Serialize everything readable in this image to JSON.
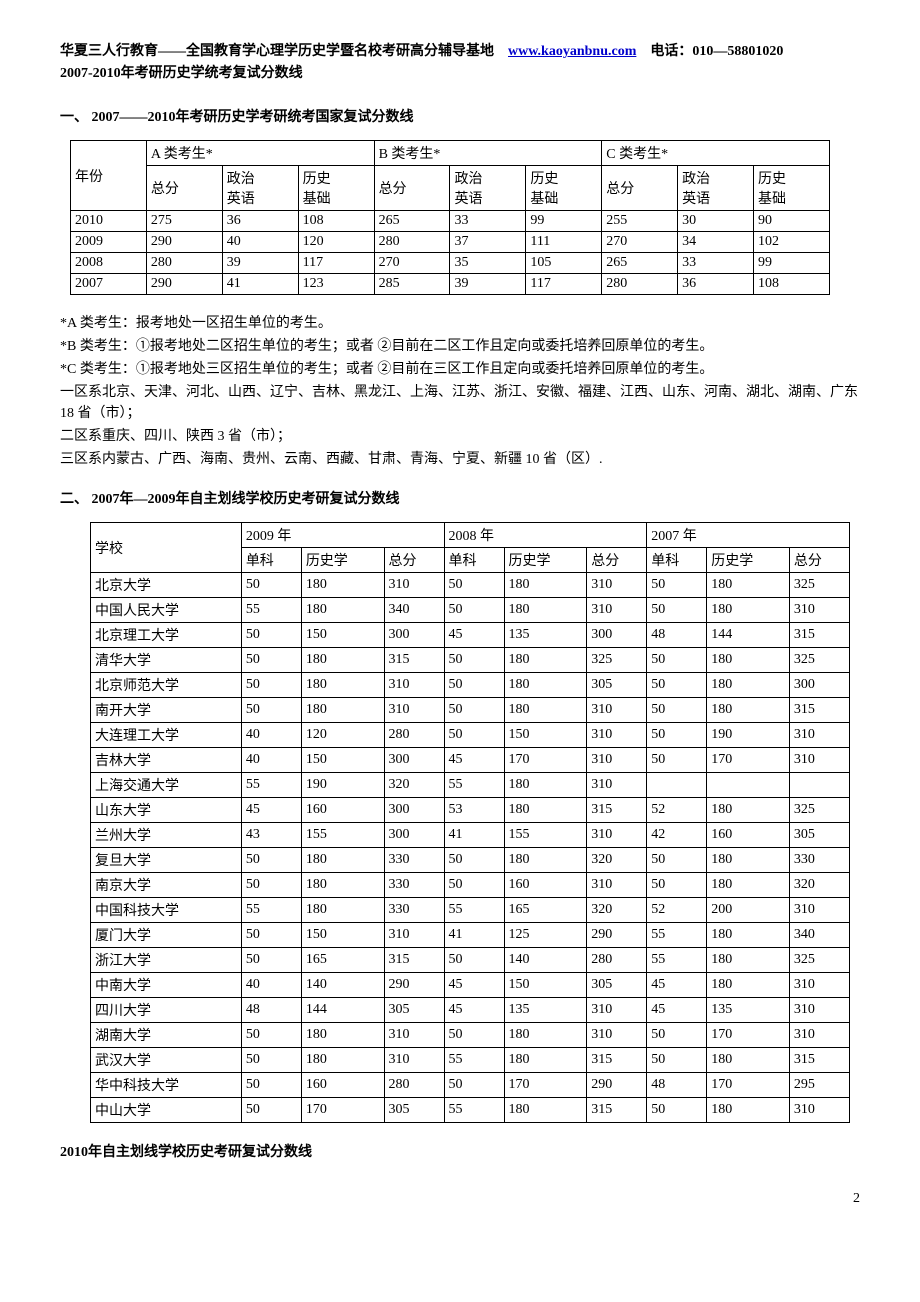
{
  "header": {
    "org": "华夏三人行教育——全国教育学心理学历史学暨名校考研高分辅导基地",
    "url": "www.kaoyanbnu.com",
    "phone_label": "电话：",
    "phone": "010—58801020"
  },
  "subtitle": "2007-2010年考研历史学统考复试分数线",
  "section1_title": "一、 2007——2010年考研历史学考研统考国家复试分数线",
  "table1": {
    "col_year": "年份",
    "groupA": "A 类考生*",
    "groupB": "B 类考生*",
    "groupC": "C 类考生*",
    "sub_total": "总分",
    "sub_pe": "政治\n英语",
    "sub_hist": "历史\n基础",
    "rows": [
      [
        "2010",
        "275",
        "36",
        "108",
        "265",
        "33",
        "99",
        "255",
        "30",
        "90"
      ],
      [
        "2009",
        "290",
        "40",
        "120",
        "280",
        "37",
        "111",
        "270",
        "34",
        "102"
      ],
      [
        "2008",
        "280",
        "39",
        "117",
        "270",
        "35",
        "105",
        "265",
        "33",
        "99"
      ],
      [
        "2007",
        "290",
        "41",
        "123",
        "285",
        "39",
        "117",
        "280",
        "36",
        "108"
      ]
    ]
  },
  "notes": [
    "*A 类考生：报考地处一区招生单位的考生。",
    "*B 类考生：①报考地处二区招生单位的考生；或者 ②目前在二区工作且定向或委托培养回原单位的考生。",
    "*C 类考生：①报考地处三区招生单位的考生；或者 ②目前在三区工作且定向或委托培养回原单位的考生。",
    "一区系北京、天津、河北、山西、辽宁、吉林、黑龙江、上海、江苏、浙江、安徽、福建、江西、山东、河南、湖北、湖南、广东 18 省（市）；",
    "二区系重庆、四川、陕西 3 省（市）；",
    "三区系内蒙古、广西、海南、贵州、云南、西藏、甘肃、青海、宁夏、新疆 10 省（区）."
  ],
  "section2_title": "二、 2007年—2009年自主划线学校历史考研复试分数线",
  "table2": {
    "col_school": "学校",
    "y2009": "2009 年",
    "y2008": "2008 年",
    "y2007": "2007 年",
    "sub_single": "单科",
    "sub_hist": "历史学",
    "sub_total": "总分",
    "rows": [
      [
        "北京大学",
        "50",
        "180",
        "310",
        "50",
        "180",
        "310",
        "50",
        "180",
        "325"
      ],
      [
        "中国人民大学",
        "55",
        "180",
        "340",
        "50",
        "180",
        "310",
        "50",
        "180",
        "310"
      ],
      [
        "北京理工大学",
        "50",
        "150",
        "300",
        "45",
        "135",
        "300",
        "48",
        "144",
        "315"
      ],
      [
        "清华大学",
        "50",
        "180",
        "315",
        "50",
        "180",
        "325",
        "50",
        "180",
        "325"
      ],
      [
        "北京师范大学",
        "50",
        "180",
        "310",
        "50",
        "180",
        "305",
        "50",
        "180",
        "300"
      ],
      [
        "南开大学",
        "50",
        "180",
        "310",
        "50",
        "180",
        "310",
        "50",
        "180",
        "315"
      ],
      [
        "大连理工大学",
        "40",
        "120",
        "280",
        "50",
        "150",
        "310",
        "50",
        "190",
        "310"
      ],
      [
        "吉林大学",
        "40",
        "150",
        "300",
        "45",
        "170",
        "310",
        "50",
        "170",
        "310"
      ],
      [
        "上海交通大学",
        "55",
        "190",
        "320",
        "55",
        "180",
        "310",
        "",
        "",
        ""
      ],
      [
        "山东大学",
        "45",
        "160",
        "300",
        "53",
        "180",
        "315",
        "52",
        "180",
        "325"
      ],
      [
        "兰州大学",
        "43",
        "155",
        "300",
        "41",
        "155",
        "310",
        "42",
        "160",
        "305"
      ],
      [
        "复旦大学",
        "50",
        "180",
        "330",
        "50",
        "180",
        "320",
        "50",
        "180",
        "330"
      ],
      [
        "南京大学",
        "50",
        "180",
        "330",
        "50",
        "160",
        "310",
        "50",
        "180",
        "320"
      ],
      [
        "中国科技大学",
        "55",
        "180",
        "330",
        "55",
        "165",
        "320",
        "52",
        "200",
        "310"
      ],
      [
        "厦门大学",
        "50",
        "150",
        "310",
        "41",
        "125",
        "290",
        "55",
        "180",
        "340"
      ],
      [
        "浙江大学",
        "50",
        "165",
        "315",
        "50",
        "140",
        "280",
        "55",
        "180",
        "325"
      ],
      [
        "中南大学",
        "40",
        "140",
        "290",
        "45",
        "150",
        "305",
        "45",
        "180",
        "310"
      ],
      [
        "四川大学",
        "48",
        "144",
        "305",
        "45",
        "135",
        "310",
        "45",
        "135",
        "310"
      ],
      [
        "湖南大学",
        "50",
        "180",
        "310",
        "50",
        "180",
        "310",
        "50",
        "170",
        "310"
      ],
      [
        "武汉大学",
        "50",
        "180",
        "310",
        "55",
        "180",
        "315",
        "50",
        "180",
        "315"
      ],
      [
        "华中科技大学",
        "50",
        "160",
        "280",
        "50",
        "170",
        "290",
        "48",
        "170",
        "295"
      ],
      [
        "中山大学",
        "50",
        "170",
        "305",
        "55",
        "180",
        "315",
        "50",
        "180",
        "310"
      ]
    ]
  },
  "section3_title": "2010年自主划线学校历史考研复试分数线",
  "page_num": "2"
}
